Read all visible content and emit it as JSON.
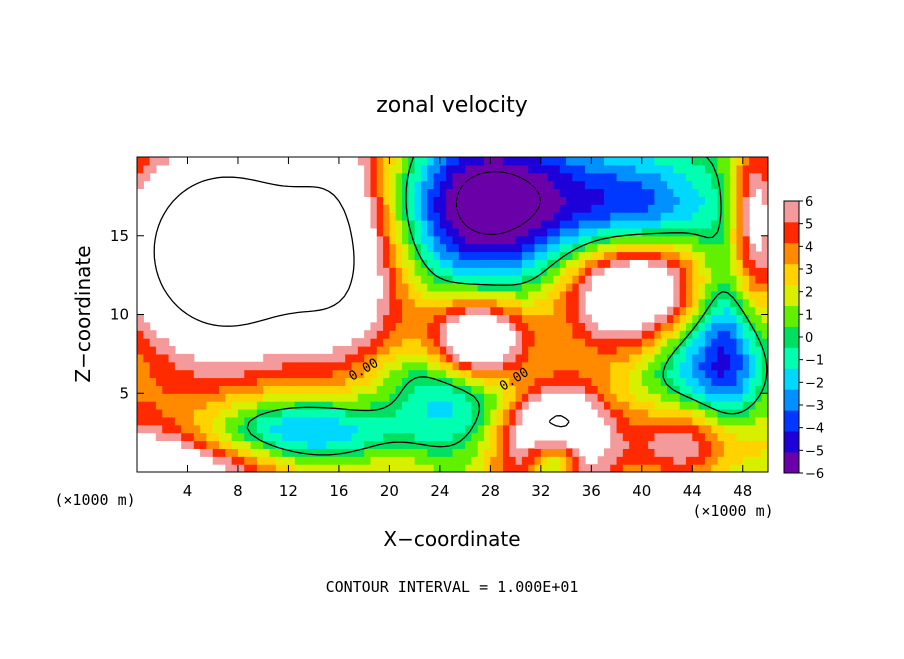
{
  "chart_data": {
    "type": "heatmap",
    "title": "zonal velocity",
    "xlabel": "X−coordinate",
    "ylabel": "Z−coordinate",
    "x_unit_label": "(×1000 m)",
    "y_unit_label": "(×1000 m)",
    "x_range": [
      0,
      50
    ],
    "y_range": [
      0,
      20
    ],
    "x_ticks": [
      4,
      8,
      12,
      16,
      20,
      24,
      28,
      32,
      36,
      40,
      44,
      48
    ],
    "y_ticks": [
      5,
      10,
      15
    ],
    "colorbar": {
      "range": [
        -6,
        6
      ],
      "levels": [
        -6,
        -5,
        -4,
        -3,
        -2,
        -1,
        0,
        1,
        2,
        3,
        4,
        5,
        6
      ],
      "tick_labels": [
        "6",
        "5",
        "4",
        "3",
        "2",
        "1",
        "0",
        "−1",
        "−2",
        "−3",
        "−4",
        "−5",
        "−6"
      ],
      "colors_low_to_high": [
        "#6a00a8",
        "#1e00d8",
        "#0038ff",
        "#0090ff",
        "#00d8ff",
        "#00ffb0",
        "#00e060",
        "#60f000",
        "#d8f000",
        "#ffd200",
        "#ff8a00",
        "#ff2a00",
        "#f49a9a"
      ]
    },
    "contour_labels": [
      "0.00",
      "0.00"
    ],
    "footer": "CONTOUR INTERVAL = 1.000E+01"
  }
}
